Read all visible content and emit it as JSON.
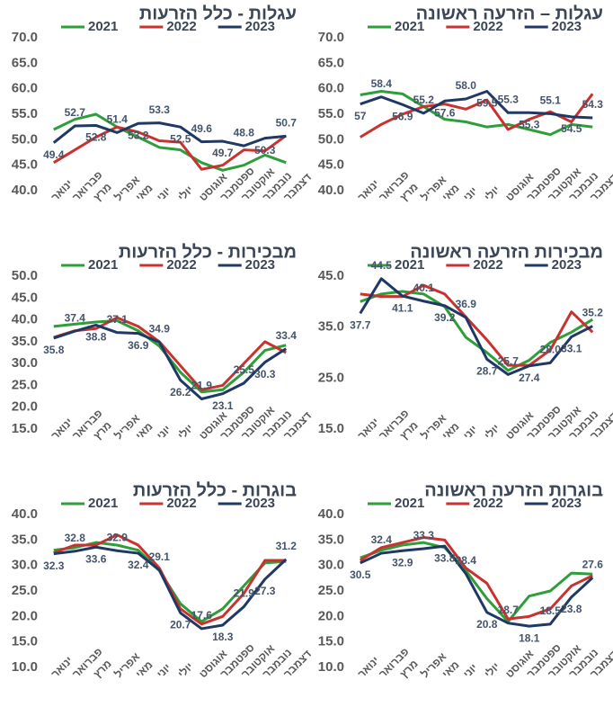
{
  "chart_data": [
    {
      "type": "line",
      "title": "עגלות – הזרעה ראשונה",
      "categories": [
        "ינואר",
        "פברואר",
        "מרץ",
        "אפריל",
        "מאי",
        "יוני",
        "יולי",
        "אוגוסט",
        "ספטמבר",
        "אוקטובר",
        "נובמבר",
        "דצמבר"
      ],
      "ylim": [
        40,
        70
      ],
      "yticks": [
        {
          "value": 40,
          "label": "40.0"
        },
        {
          "value": 45,
          "label": "45.0"
        },
        {
          "value": 50,
          "label": "50.0"
        },
        {
          "value": 55,
          "label": "55.0"
        },
        {
          "value": 60,
          "label": "60.0"
        },
        {
          "value": 65,
          "label": "65.0"
        },
        {
          "value": 70,
          "label": "70.0"
        }
      ],
      "series": [
        {
          "name": "2021",
          "color": "#2e9e3a",
          "values": [
            58.8,
            59.5,
            59,
            56.5,
            54,
            53.5,
            52.5,
            53,
            52,
            51,
            53,
            52.5
          ]
        },
        {
          "name": "2022",
          "color": "#c8322f",
          "values": [
            50.5,
            53,
            55,
            56.5,
            57,
            56,
            57.8,
            52,
            54,
            55.5,
            53.5,
            59
          ]
        },
        {
          "name": "2023",
          "color": "#1f3864",
          "values": [
            57,
            58.4,
            56.9,
            55.2,
            57.6,
            58,
            59.5,
            55.3,
            55.3,
            55.1,
            54.5,
            54.3
          ],
          "value_labels": [
            "57",
            "58.4",
            "56.9",
            "55.2",
            "57.6",
            "58.0",
            "59.5",
            "55.3",
            "55.3",
            "55.1",
            "54.5",
            "54.3"
          ]
        }
      ]
    },
    {
      "type": "line",
      "title": "עגלות - כלל הזרעות",
      "categories": [
        "ינואר",
        "פברואר",
        "מרץ",
        "אפריל",
        "מאי",
        "יוני",
        "יולי",
        "אוגוסט",
        "ספטמבר",
        "אוקטובר",
        "נובמבר",
        "דצמבר"
      ],
      "ylim": [
        40,
        70
      ],
      "yticks": [
        {
          "value": 40,
          "label": "40.0"
        },
        {
          "value": 45,
          "label": "45.0"
        },
        {
          "value": 50,
          "label": "50.0"
        },
        {
          "value": 55,
          "label": "55.0"
        },
        {
          "value": 60,
          "label": "60.0"
        },
        {
          "value": 65,
          "label": "65.0"
        },
        {
          "value": 70,
          "label": "70.0"
        }
      ],
      "series": [
        {
          "name": "2021",
          "color": "#2e9e3a",
          "values": [
            52,
            54,
            55,
            52.5,
            50.5,
            48.5,
            48,
            45.5,
            44,
            45,
            47,
            45.5
          ]
        },
        {
          "name": "2022",
          "color": "#c8322f",
          "values": [
            45.5,
            48,
            50.5,
            52.5,
            51.5,
            49.8,
            49.5,
            44.2,
            45,
            48,
            47.8,
            50.8
          ]
        },
        {
          "name": "2023",
          "color": "#1f3864",
          "values": [
            49.4,
            52.7,
            52.8,
            51.4,
            53.2,
            53.3,
            52.5,
            49.6,
            49.7,
            48.8,
            50.3,
            50.7
          ],
          "value_labels": [
            "49.4",
            "52.7",
            "52.8",
            "51.4",
            "53.2",
            "53.3",
            "52.5",
            "49.6",
            "49.7",
            "48.8",
            "50.3",
            "50.7"
          ]
        }
      ]
    },
    {
      "type": "line",
      "title": "מבכירות הזרעה ראשונה",
      "categories": [
        "ינואר",
        "פברואר",
        "מרץ",
        "אפריל",
        "מאי",
        "יוני",
        "יולי",
        "אוגוסט",
        "ספטמבר",
        "אוקטובר",
        "נובמבר",
        "דצמבר"
      ],
      "ylim": [
        15,
        45
      ],
      "yticks": [
        {
          "value": 15,
          "label": "15.0"
        },
        {
          "value": 25,
          "label": "25.0"
        },
        {
          "value": 35,
          "label": "35.0"
        },
        {
          "value": 45,
          "label": "45.0"
        }
      ],
      "series": [
        {
          "name": "2021",
          "color": "#2e9e3a",
          "values": [
            40,
            41.5,
            42,
            41.5,
            39,
            33,
            30,
            26.5,
            28.5,
            32,
            34,
            36.5
          ]
        },
        {
          "name": "2022",
          "color": "#c8322f",
          "values": [
            41.5,
            41,
            41,
            43.2,
            41.5,
            37,
            32.5,
            27.5,
            27.5,
            30.5,
            38,
            34
          ]
        },
        {
          "name": "2023",
          "color": "#1f3864",
          "values": [
            37.7,
            44.5,
            41.1,
            40.1,
            39.2,
            36.9,
            28.7,
            25.7,
            27.4,
            28,
            33.1,
            35.2
          ],
          "value_labels": [
            "37.7",
            "44.5",
            "41.1",
            "40.1",
            "39.2",
            "36.9",
            "28.7",
            "25.7",
            "27.4",
            "28.0",
            "33.1",
            "35.2"
          ]
        }
      ]
    },
    {
      "type": "line",
      "title": "מבכירות - כלל הזרעות",
      "categories": [
        "ינואר",
        "פברואר",
        "מרץ",
        "אפריל",
        "מאי",
        "יוני",
        "יולי",
        "אוגוסט",
        "ספטמבר",
        "אוקטובר",
        "נובמבר",
        "דצמבר"
      ],
      "ylim": [
        15,
        50
      ],
      "yticks": [
        {
          "value": 15,
          "label": "15.0"
        },
        {
          "value": 20,
          "label": "20.0"
        },
        {
          "value": 25,
          "label": "25.0"
        },
        {
          "value": 30,
          "label": "30.0"
        },
        {
          "value": 35,
          "label": "35.0"
        },
        {
          "value": 40,
          "label": "40.0"
        },
        {
          "value": 45,
          "label": "45.0"
        },
        {
          "value": 50,
          "label": "50.0"
        }
      ],
      "series": [
        {
          "name": "2021",
          "color": "#2e9e3a",
          "values": [
            38.5,
            39,
            39.5,
            39.8,
            37.5,
            34,
            28,
            23.5,
            24,
            28,
            33,
            34.2
          ]
        },
        {
          "name": "2022",
          "color": "#c8322f",
          "values": [
            36,
            37.5,
            38,
            40.5,
            38.5,
            35,
            29.5,
            24,
            25,
            30,
            35,
            32.5
          ]
        },
        {
          "name": "2023",
          "color": "#1f3864",
          "values": [
            35.8,
            37.4,
            38.8,
            37.1,
            36.9,
            34.9,
            26.2,
            21.9,
            23.1,
            25.5,
            30.3,
            33.4
          ],
          "value_labels": [
            "35.8",
            "37.4",
            "38.8",
            "37.1",
            "36.9",
            "34.9",
            "26.2",
            "21.9",
            "23.1",
            "25.5",
            "30.3",
            "33.4"
          ]
        }
      ]
    },
    {
      "type": "line",
      "title": "בוגרות הזרעה ראשונה",
      "categories": [
        "ינואר",
        "פברואר",
        "מרץ",
        "אפריל",
        "מאי",
        "יוני",
        "יולי",
        "אוגוסט",
        "ספטמבר",
        "אוקטובר",
        "נובמבר",
        "דצמבר"
      ],
      "ylim": [
        10,
        40
      ],
      "yticks": [
        {
          "value": 10,
          "label": "10.0"
        },
        {
          "value": 15,
          "label": "15.0"
        },
        {
          "value": 20,
          "label": "20.0"
        },
        {
          "value": 25,
          "label": "25.0"
        },
        {
          "value": 30,
          "label": "30.0"
        },
        {
          "value": 35,
          "label": "35.0"
        },
        {
          "value": 40,
          "label": "40.0"
        }
      ],
      "series": [
        {
          "name": "2021",
          "color": "#2e9e3a",
          "values": [
            31.5,
            33,
            34,
            34.5,
            33.5,
            29,
            23.5,
            19,
            24,
            25,
            28.5,
            28.3
          ]
        },
        {
          "name": "2022",
          "color": "#c8322f",
          "values": [
            31,
            33.5,
            34.5,
            35.5,
            35,
            29.5,
            26.5,
            19.5,
            20,
            21.5,
            26,
            28
          ]
        },
        {
          "name": "2023",
          "color": "#1f3864",
          "values": [
            30.5,
            32.4,
            32.9,
            33.3,
            33.8,
            28.4,
            20.8,
            18.7,
            18.1,
            18.5,
            23.8,
            27.6
          ],
          "value_labels": [
            "30.5",
            "32.4",
            "32.9",
            "33.3",
            "33.8",
            "28.4",
            "20.8",
            "18.7",
            "18.1",
            "18.5",
            "23.8",
            "27.6"
          ]
        }
      ]
    },
    {
      "type": "line",
      "title": "בוגרות - כלל הזרעות",
      "categories": [
        "ינואר",
        "פברואר",
        "מרץ",
        "אפריל",
        "מאי",
        "יוני",
        "יולי",
        "אוגוסט",
        "ספטמבר",
        "אוקטובר",
        "נובמבר",
        "דצמבר"
      ],
      "ylim": [
        10,
        40
      ],
      "yticks": [
        {
          "value": 10,
          "label": "10.0"
        },
        {
          "value": 15,
          "label": "15.0"
        },
        {
          "value": 20,
          "label": "20.0"
        },
        {
          "value": 25,
          "label": "25.0"
        },
        {
          "value": 30,
          "label": "30.0"
        },
        {
          "value": 35,
          "label": "35.0"
        },
        {
          "value": 40,
          "label": "40.0"
        }
      ],
      "series": [
        {
          "name": "2021",
          "color": "#2e9e3a",
          "values": [
            33,
            33.5,
            34.5,
            34,
            33,
            29,
            22.5,
            19,
            21.5,
            26,
            30.5,
            30.8
          ]
        },
        {
          "name": "2022",
          "color": "#c8322f",
          "values": [
            32.5,
            34,
            34,
            36,
            34,
            29.5,
            21.5,
            18.5,
            20,
            24.5,
            31,
            31
          ]
        },
        {
          "name": "2023",
          "color": "#1f3864",
          "values": [
            32.3,
            32.8,
            33.6,
            32.9,
            32.4,
            29.1,
            20.7,
            17.6,
            18.3,
            21.9,
            27.3,
            31.2
          ],
          "value_labels": [
            "32.3",
            "32.8",
            "33.6",
            "32.9",
            "32.4",
            "29.1",
            "20.7",
            "17.6",
            "18.3",
            "21.9",
            "27.3",
            "31.2"
          ]
        }
      ]
    }
  ]
}
